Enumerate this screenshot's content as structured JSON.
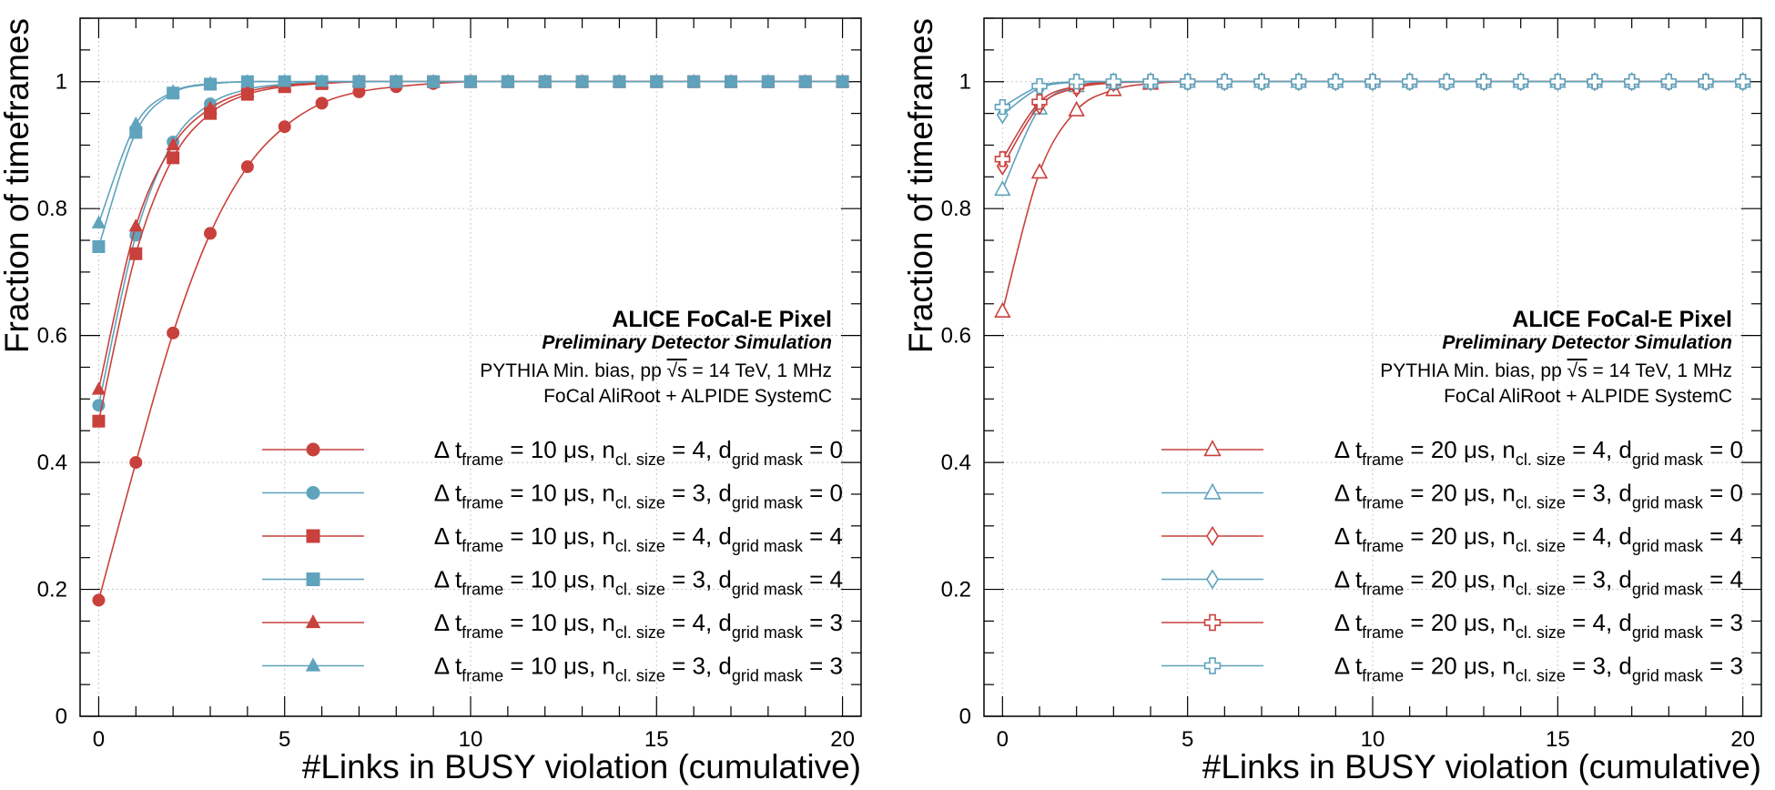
{
  "colors": {
    "red": "#c9413c",
    "blue": "#5fa3bd",
    "grid": "#c8c8c8"
  },
  "panels": [
    {
      "id": "left",
      "chart_data": {
        "type": "scatter",
        "xlabel": "#Links in BUSY violation (cumulative)",
        "ylabel": "Fraction of timeframes",
        "xlim": [
          -0.5,
          20.5
        ],
        "ylim": [
          0,
          1.1
        ],
        "xticks": [
          "0",
          "5",
          "10",
          "15",
          "20"
        ],
        "yticks": [
          "0",
          "0.2",
          "0.4",
          "0.6",
          "0.8",
          "1"
        ],
        "grid": true,
        "legend_placement": "bottom-right",
        "annotation": {
          "title": "ALICE FoCal-E Pixel",
          "subtitle": "Preliminary Detector Simulation",
          "line1_prefix": "PYTHIA Min. bias, pp ",
          "line1_sqrt": "√s",
          "line1_suffix": " = 14 TeV, 1 MHz",
          "line2": "FoCal AliRoot + ALPIDE SystemC"
        },
        "series": [
          {
            "legend": {
              "main1": "Δ t",
              "sub1": "frame",
              "main2": " = 10 μs, n",
              "sub2": "cl. size",
              "main3": " = 4, d",
              "sub3": "grid mask",
              "main4": " = 0"
            },
            "color": "red",
            "marker": "circle",
            "filled": true,
            "x": [
              0,
              1,
              2,
              3,
              4,
              5,
              6,
              7,
              8,
              9,
              10,
              11,
              12,
              13,
              14,
              15,
              16,
              17,
              18,
              19,
              20
            ],
            "y": [
              0.183,
              0.4,
              0.604,
              0.761,
              0.866,
              0.929,
              0.966,
              0.984,
              0.992,
              0.997,
              1,
              1,
              1,
              1,
              1,
              1,
              1,
              1,
              1,
              1,
              1
            ]
          },
          {
            "legend": {
              "main1": "Δ t",
              "sub1": "frame",
              "main2": " = 10 μs, n",
              "sub2": "cl. size",
              "main3": " = 3, d",
              "sub3": "grid mask",
              "main4": " = 0"
            },
            "color": "blue",
            "marker": "circle",
            "filled": true,
            "x": [
              0,
              1,
              2,
              3,
              4,
              5,
              6,
              7,
              8,
              9,
              10,
              11,
              12,
              13,
              14,
              15,
              16,
              17,
              18,
              19,
              20
            ],
            "y": [
              0.49,
              0.758,
              0.905,
              0.965,
              0.988,
              0.996,
              1,
              1,
              1,
              1,
              1,
              1,
              1,
              1,
              1,
              1,
              1,
              1,
              1,
              1,
              1
            ]
          },
          {
            "legend": {
              "main1": "Δ t",
              "sub1": "frame",
              "main2": " = 10 μs, n",
              "sub2": "cl. size",
              "main3": " = 4, d",
              "sub3": "grid mask",
              "main4": " = 4"
            },
            "color": "red",
            "marker": "square",
            "filled": true,
            "x": [
              0,
              1,
              2,
              3,
              4,
              5,
              6,
              7,
              8,
              9,
              10,
              11,
              12,
              13,
              14,
              15,
              16,
              17,
              18,
              19,
              20
            ],
            "y": [
              0.465,
              0.729,
              0.88,
              0.95,
              0.98,
              0.992,
              0.997,
              1,
              1,
              1,
              1,
              1,
              1,
              1,
              1,
              1,
              1,
              1,
              1,
              1,
              1
            ]
          },
          {
            "legend": {
              "main1": "Δ t",
              "sub1": "frame",
              "main2": " = 10 μs, n",
              "sub2": "cl. size",
              "main3": " = 3, d",
              "sub3": "grid mask",
              "main4": " = 4"
            },
            "color": "blue",
            "marker": "square",
            "filled": true,
            "x": [
              0,
              1,
              2,
              3,
              4,
              5,
              6,
              7,
              8,
              9,
              10,
              11,
              12,
              13,
              14,
              15,
              16,
              17,
              18,
              19,
              20
            ],
            "y": [
              0.74,
              0.92,
              0.982,
              0.996,
              1,
              1,
              1,
              1,
              1,
              1,
              1,
              1,
              1,
              1,
              1,
              1,
              1,
              1,
              1,
              1,
              1
            ]
          },
          {
            "legend": {
              "main1": "Δ t",
              "sub1": "frame",
              "main2": " = 10 μs, n",
              "sub2": "cl. size",
              "main3": " = 4, d",
              "sub3": "grid mask",
              "main4": " = 3"
            },
            "color": "red",
            "marker": "triangle",
            "filled": true,
            "x": [
              0,
              1,
              2,
              3,
              4,
              5,
              6,
              7,
              8,
              9,
              10,
              11,
              12,
              13,
              14,
              15,
              16,
              17,
              18,
              19,
              20
            ],
            "y": [
              0.515,
              0.772,
              0.9,
              0.958,
              0.984,
              0.994,
              0.998,
              1,
              1,
              1,
              1,
              1,
              1,
              1,
              1,
              1,
              1,
              1,
              1,
              1,
              1
            ]
          },
          {
            "legend": {
              "main1": "Δ t",
              "sub1": "frame",
              "main2": " = 10 μs, n",
              "sub2": "cl. size",
              "main3": " = 3, d",
              "sub3": "grid mask",
              "main4": " = 3"
            },
            "color": "blue",
            "marker": "triangle",
            "filled": true,
            "x": [
              0,
              1,
              2,
              3,
              4,
              5,
              6,
              7,
              8,
              9,
              10,
              11,
              12,
              13,
              14,
              15,
              16,
              17,
              18,
              19,
              20
            ],
            "y": [
              0.777,
              0.933,
              0.984,
              0.997,
              1,
              1,
              1,
              1,
              1,
              1,
              1,
              1,
              1,
              1,
              1,
              1,
              1,
              1,
              1,
              1,
              1
            ]
          }
        ]
      }
    },
    {
      "id": "right",
      "chart_data": {
        "type": "scatter",
        "xlabel": "#Links in BUSY violation (cumulative)",
        "ylabel": "Fraction of timeframes",
        "xlim": [
          -0.5,
          20.5
        ],
        "ylim": [
          0,
          1.1
        ],
        "xticks": [
          "0",
          "5",
          "10",
          "15",
          "20"
        ],
        "yticks": [
          "0",
          "0.2",
          "0.4",
          "0.6",
          "0.8",
          "1"
        ],
        "grid": true,
        "legend_placement": "bottom-right",
        "annotation": {
          "title": "ALICE FoCal-E Pixel",
          "subtitle": "Preliminary Detector Simulation",
          "line1_prefix": "PYTHIA Min. bias, pp ",
          "line1_sqrt": "√s",
          "line1_suffix": " = 14 TeV, 1 MHz",
          "line2": "FoCal AliRoot + ALPIDE SystemC"
        },
        "series": [
          {
            "legend": {
              "main1": "Δ t",
              "sub1": "frame",
              "main2": " = 20 μs, n",
              "sub2": "cl. size",
              "main3": " = 4, d",
              "sub3": "grid mask",
              "main4": " = 0"
            },
            "color": "red",
            "marker": "triangle",
            "filled": false,
            "x": [
              0,
              1,
              2,
              3,
              4,
              5,
              6,
              7,
              8,
              9,
              10,
              11,
              12,
              13,
              14,
              15,
              16,
              17,
              18,
              19,
              20
            ],
            "y": [
              0.638,
              0.857,
              0.955,
              0.987,
              0.997,
              1,
              1,
              1,
              1,
              1,
              1,
              1,
              1,
              1,
              1,
              1,
              1,
              1,
              1,
              1,
              1
            ]
          },
          {
            "legend": {
              "main1": "Δ t",
              "sub1": "frame",
              "main2": " = 20 μs, n",
              "sub2": "cl. size",
              "main3": " = 3, d",
              "sub3": "grid mask",
              "main4": " = 0"
            },
            "color": "blue",
            "marker": "triangle",
            "filled": false,
            "x": [
              0,
              1,
              2,
              3,
              4,
              5,
              6,
              7,
              8,
              9,
              10,
              11,
              12,
              13,
              14,
              15,
              16,
              17,
              18,
              19,
              20
            ],
            "y": [
              0.83,
              0.958,
              0.993,
              0.999,
              1,
              1,
              1,
              1,
              1,
              1,
              1,
              1,
              1,
              1,
              1,
              1,
              1,
              1,
              1,
              1,
              1
            ]
          },
          {
            "legend": {
              "main1": "Δ t",
              "sub1": "frame",
              "main2": " = 20 μs, n",
              "sub2": "cl. size",
              "main3": " = 4, d",
              "sub3": "grid mask",
              "main4": " = 4"
            },
            "color": "red",
            "marker": "diamond",
            "filled": false,
            "x": [
              0,
              1,
              2,
              3,
              4,
              5,
              6,
              7,
              8,
              9,
              10,
              11,
              12,
              13,
              14,
              15,
              16,
              17,
              18,
              19,
              20
            ],
            "y": [
              0.867,
              0.962,
              0.99,
              0.998,
              1,
              1,
              1,
              1,
              1,
              1,
              1,
              1,
              1,
              1,
              1,
              1,
              1,
              1,
              1,
              1,
              1
            ]
          },
          {
            "legend": {
              "main1": "Δ t",
              "sub1": "frame",
              "main2": " = 20 μs, n",
              "sub2": "cl. size",
              "main3": " = 3, d",
              "sub3": "grid mask",
              "main4": " = 4"
            },
            "color": "blue",
            "marker": "diamond",
            "filled": false,
            "x": [
              0,
              1,
              2,
              3,
              4,
              5,
              6,
              7,
              8,
              9,
              10,
              11,
              12,
              13,
              14,
              15,
              16,
              17,
              18,
              19,
              20
            ],
            "y": [
              0.948,
              0.99,
              0.999,
              1,
              1,
              1,
              1,
              1,
              1,
              1,
              1,
              1,
              1,
              1,
              1,
              1,
              1,
              1,
              1,
              1,
              1
            ]
          },
          {
            "legend": {
              "main1": "Δ t",
              "sub1": "frame",
              "main2": " = 20 μs, n",
              "sub2": "cl. size",
              "main3": " = 4, d",
              "sub3": "grid mask",
              "main4": " = 3"
            },
            "color": "red",
            "marker": "cross",
            "filled": false,
            "x": [
              0,
              1,
              2,
              3,
              4,
              5,
              6,
              7,
              8,
              9,
              10,
              11,
              12,
              13,
              14,
              15,
              16,
              17,
              18,
              19,
              20
            ],
            "y": [
              0.878,
              0.968,
              0.993,
              0.999,
              1,
              1,
              1,
              1,
              1,
              1,
              1,
              1,
              1,
              1,
              1,
              1,
              1,
              1,
              1,
              1,
              1
            ]
          },
          {
            "legend": {
              "main1": "Δ t",
              "sub1": "frame",
              "main2": " = 20 μs, n",
              "sub2": "cl. size",
              "main3": " = 3, d",
              "sub3": "grid mask",
              "main4": " = 3"
            },
            "color": "blue",
            "marker": "cross",
            "filled": false,
            "x": [
              0,
              1,
              2,
              3,
              4,
              5,
              6,
              7,
              8,
              9,
              10,
              11,
              12,
              13,
              14,
              15,
              16,
              17,
              18,
              19,
              20
            ],
            "y": [
              0.96,
              0.993,
              1,
              1,
              1,
              1,
              1,
              1,
              1,
              1,
              1,
              1,
              1,
              1,
              1,
              1,
              1,
              1,
              1,
              1,
              1
            ]
          }
        ]
      }
    }
  ]
}
